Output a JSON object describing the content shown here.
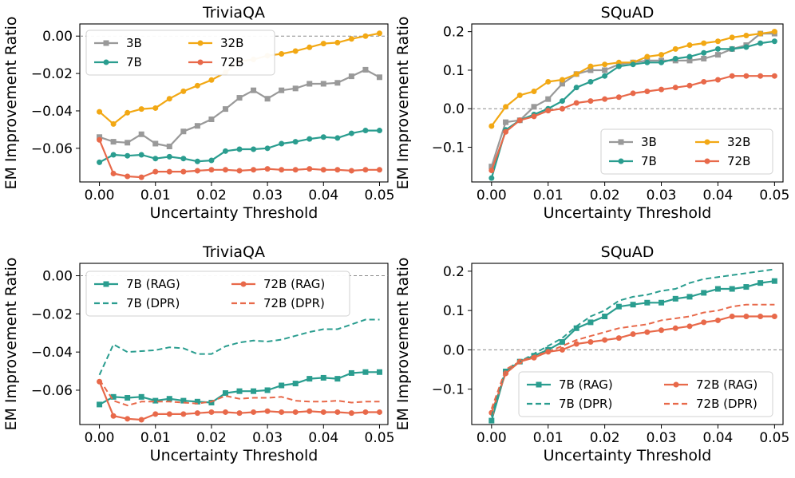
{
  "chart_data": [
    {
      "type": "line",
      "title": "TriviaQA",
      "xlabel": "Uncertainty Threshold",
      "ylabel": "EM Improvement Ratio",
      "xlim": [
        -0.0035,
        0.0515
      ],
      "ylim": [
        -0.078,
        0.0065
      ],
      "xticks": [
        0.0,
        0.01,
        0.02,
        0.03,
        0.04,
        0.05
      ],
      "xtick_labels": [
        "0.00",
        "0.01",
        "0.02",
        "0.03",
        "0.04",
        "0.05"
      ],
      "yticks": [
        0.0,
        -0.02,
        -0.04,
        -0.06
      ],
      "ytick_labels": [
        "0.00",
        "−0.02",
        "−0.04",
        "−0.06"
      ],
      "reference_line": 0,
      "legend_position": "upper-left",
      "x": [
        0.0,
        0.0025,
        0.005,
        0.0075,
        0.01,
        0.0125,
        0.015,
        0.0175,
        0.02,
        0.0225,
        0.025,
        0.0275,
        0.03,
        0.0325,
        0.035,
        0.0375,
        0.04,
        0.0425,
        0.045,
        0.0475,
        0.05
      ],
      "series": [
        {
          "name": "3B",
          "color": "#999999",
          "marker": "square",
          "style": "solid",
          "values": [
            -0.054,
            -0.0565,
            -0.057,
            -0.0525,
            -0.0575,
            -0.059,
            -0.051,
            -0.048,
            -0.0445,
            -0.039,
            -0.033,
            -0.029,
            -0.0335,
            -0.029,
            -0.028,
            -0.0255,
            -0.0255,
            -0.025,
            -0.0215,
            -0.018,
            -0.022
          ]
        },
        {
          "name": "32B",
          "color": "#f2a814",
          "marker": "circle",
          "style": "solid",
          "values": [
            -0.0405,
            -0.047,
            -0.041,
            -0.039,
            -0.0385,
            -0.0335,
            -0.0295,
            -0.0265,
            -0.0235,
            -0.0195,
            -0.0135,
            -0.0125,
            -0.0105,
            -0.0095,
            -0.008,
            -0.006,
            -0.004,
            -0.0035,
            -0.0015,
            0.0,
            0.0015
          ]
        },
        {
          "name": "7B",
          "color": "#2a9d8f",
          "marker": "circle",
          "style": "solid",
          "values": [
            -0.0675,
            -0.0635,
            -0.064,
            -0.0635,
            -0.0655,
            -0.0645,
            -0.0655,
            -0.067,
            -0.0665,
            -0.0615,
            -0.0605,
            -0.0605,
            -0.06,
            -0.0575,
            -0.0565,
            -0.055,
            -0.054,
            -0.0545,
            -0.052,
            -0.0505,
            -0.0505
          ]
        },
        {
          "name": "72B",
          "color": "#e8694a",
          "marker": "circle",
          "style": "solid",
          "values": [
            -0.0555,
            -0.0735,
            -0.075,
            -0.0755,
            -0.0725,
            -0.0725,
            -0.0725,
            -0.072,
            -0.0715,
            -0.0715,
            -0.072,
            -0.0715,
            -0.071,
            -0.0715,
            -0.0715,
            -0.071,
            -0.0715,
            -0.0715,
            -0.072,
            -0.0715,
            -0.0715
          ]
        }
      ]
    },
    {
      "type": "line",
      "title": "SQuAD",
      "xlabel": "Uncertainty Threshold",
      "ylabel": "EM Improvement Ratio",
      "xlim": [
        -0.0035,
        0.0515
      ],
      "ylim": [
        -0.19,
        0.22
      ],
      "xticks": [
        0.0,
        0.01,
        0.02,
        0.03,
        0.04,
        0.05
      ],
      "xtick_labels": [
        "0.00",
        "0.01",
        "0.02",
        "0.03",
        "0.04",
        "0.05"
      ],
      "yticks": [
        0.2,
        0.1,
        0.0,
        -0.1
      ],
      "ytick_labels": [
        "0.2",
        "0.1",
        "0.0",
        "−0.1"
      ],
      "reference_line": 0,
      "legend_position": "lower-right",
      "x": [
        0.0,
        0.0025,
        0.005,
        0.0075,
        0.01,
        0.0125,
        0.015,
        0.0175,
        0.02,
        0.0225,
        0.025,
        0.0275,
        0.03,
        0.0325,
        0.035,
        0.0375,
        0.04,
        0.0425,
        0.045,
        0.0475,
        0.05
      ],
      "series": [
        {
          "name": "3B",
          "color": "#999999",
          "marker": "square",
          "style": "solid",
          "values": [
            -0.15,
            -0.035,
            -0.03,
            0.005,
            0.025,
            0.065,
            0.09,
            0.1,
            0.1,
            0.115,
            0.12,
            0.125,
            0.125,
            0.125,
            0.125,
            0.13,
            0.14,
            0.155,
            0.165,
            0.195,
            0.195
          ]
        },
        {
          "name": "32B",
          "color": "#f2a814",
          "marker": "circle",
          "style": "solid",
          "values": [
            -0.045,
            0.005,
            0.035,
            0.045,
            0.07,
            0.075,
            0.09,
            0.11,
            0.115,
            0.12,
            0.12,
            0.135,
            0.14,
            0.155,
            0.165,
            0.17,
            0.175,
            0.185,
            0.19,
            0.195,
            0.2
          ]
        },
        {
          "name": "7B",
          "color": "#2a9d8f",
          "marker": "circle",
          "style": "solid",
          "values": [
            -0.18,
            -0.055,
            -0.03,
            -0.015,
            0.0,
            0.02,
            0.055,
            0.07,
            0.085,
            0.11,
            0.115,
            0.12,
            0.12,
            0.13,
            0.135,
            0.145,
            0.155,
            0.155,
            0.16,
            0.17,
            0.175
          ]
        },
        {
          "name": "72B",
          "color": "#e8694a",
          "marker": "circle",
          "style": "solid",
          "values": [
            -0.16,
            -0.06,
            -0.03,
            -0.02,
            -0.005,
            0.0,
            0.015,
            0.02,
            0.025,
            0.03,
            0.04,
            0.045,
            0.05,
            0.055,
            0.06,
            0.07,
            0.075,
            0.085,
            0.085,
            0.085,
            0.085
          ]
        }
      ]
    },
    {
      "type": "line",
      "title": "TriviaQA",
      "xlabel": "Uncertainty Threshold",
      "ylabel": "EM Improvement Ratio",
      "xlim": [
        -0.0035,
        0.0515
      ],
      "ylim": [
        -0.078,
        0.0065
      ],
      "xticks": [
        0.0,
        0.01,
        0.02,
        0.03,
        0.04,
        0.05
      ],
      "xtick_labels": [
        "0.00",
        "0.01",
        "0.02",
        "0.03",
        "0.04",
        "0.05"
      ],
      "yticks": [
        0.0,
        -0.02,
        -0.04,
        -0.06
      ],
      "ytick_labels": [
        "0.00",
        "−0.02",
        "−0.04",
        "−0.06"
      ],
      "reference_line": 0,
      "legend_position": "upper-center",
      "x": [
        0.0,
        0.0025,
        0.005,
        0.0075,
        0.01,
        0.0125,
        0.015,
        0.0175,
        0.02,
        0.0225,
        0.025,
        0.0275,
        0.03,
        0.0325,
        0.035,
        0.0375,
        0.04,
        0.0425,
        0.045,
        0.0475,
        0.05
      ],
      "series": [
        {
          "name": "7B (RAG)",
          "color": "#2a9d8f",
          "marker": "square",
          "style": "solid",
          "values": [
            -0.0675,
            -0.0635,
            -0.064,
            -0.0635,
            -0.0655,
            -0.0645,
            -0.0655,
            -0.066,
            -0.0665,
            -0.0615,
            -0.0605,
            -0.0605,
            -0.06,
            -0.0575,
            -0.0565,
            -0.054,
            -0.0535,
            -0.054,
            -0.051,
            -0.0505,
            -0.0505
          ]
        },
        {
          "name": "72B (RAG)",
          "color": "#e8694a",
          "marker": "circle",
          "style": "solid",
          "values": [
            -0.0555,
            -0.0735,
            -0.075,
            -0.0755,
            -0.0725,
            -0.0725,
            -0.0725,
            -0.072,
            -0.0715,
            -0.0715,
            -0.072,
            -0.0715,
            -0.071,
            -0.0715,
            -0.0715,
            -0.071,
            -0.0715,
            -0.0715,
            -0.072,
            -0.0715,
            -0.0715
          ]
        },
        {
          "name": "7B (DPR)",
          "color": "#2a9d8f",
          "marker": "none",
          "style": "dashed",
          "values": [
            -0.052,
            -0.036,
            -0.04,
            -0.0395,
            -0.039,
            -0.0375,
            -0.038,
            -0.041,
            -0.041,
            -0.037,
            -0.035,
            -0.034,
            -0.0345,
            -0.0335,
            -0.0315,
            -0.0295,
            -0.028,
            -0.028,
            -0.0255,
            -0.023,
            -0.023
          ]
        },
        {
          "name": "72B (DPR)",
          "color": "#e8694a",
          "marker": "none",
          "style": "dashed",
          "values": [
            -0.0545,
            -0.0655,
            -0.068,
            -0.066,
            -0.066,
            -0.066,
            -0.0665,
            -0.067,
            -0.066,
            -0.063,
            -0.0645,
            -0.064,
            -0.064,
            -0.0635,
            -0.0655,
            -0.066,
            -0.066,
            -0.0655,
            -0.0665,
            -0.066,
            -0.066
          ]
        }
      ]
    },
    {
      "type": "line",
      "title": "SQuAD",
      "xlabel": "Uncertainty Threshold",
      "ylabel": "EM Improvement Ratio",
      "xlim": [
        -0.0035,
        0.0515
      ],
      "ylim": [
        -0.19,
        0.22
      ],
      "xticks": [
        0.0,
        0.01,
        0.02,
        0.03,
        0.04,
        0.05
      ],
      "xtick_labels": [
        "0.00",
        "0.01",
        "0.02",
        "0.03",
        "0.04",
        "0.05"
      ],
      "yticks": [
        0.2,
        0.1,
        0.0,
        -0.1
      ],
      "ytick_labels": [
        "0.2",
        "0.1",
        "0.0",
        "−0.1"
      ],
      "reference_line": 0,
      "legend_position": "lower-right",
      "x": [
        0.0,
        0.0025,
        0.005,
        0.0075,
        0.01,
        0.0125,
        0.015,
        0.0175,
        0.02,
        0.0225,
        0.025,
        0.0275,
        0.03,
        0.0325,
        0.035,
        0.0375,
        0.04,
        0.0425,
        0.045,
        0.0475,
        0.05
      ],
      "series": [
        {
          "name": "7B (RAG)",
          "color": "#2a9d8f",
          "marker": "square",
          "style": "solid",
          "values": [
            -0.18,
            -0.055,
            -0.03,
            -0.015,
            0.0,
            0.02,
            0.055,
            0.07,
            0.085,
            0.11,
            0.115,
            0.12,
            0.12,
            0.13,
            0.135,
            0.145,
            0.155,
            0.155,
            0.16,
            0.17,
            0.175
          ]
        },
        {
          "name": "72B (RAG)",
          "color": "#e8694a",
          "marker": "circle",
          "style": "solid",
          "values": [
            -0.16,
            -0.06,
            -0.03,
            -0.02,
            -0.005,
            0.0,
            0.015,
            0.02,
            0.025,
            0.03,
            0.04,
            0.045,
            0.05,
            0.055,
            0.06,
            0.07,
            0.075,
            0.085,
            0.085,
            0.085,
            0.085
          ]
        },
        {
          "name": "7B (DPR)",
          "color": "#2a9d8f",
          "marker": "none",
          "style": "dashed",
          "values": [
            -0.17,
            -0.05,
            -0.03,
            -0.01,
            0.01,
            0.03,
            0.06,
            0.085,
            0.1,
            0.125,
            0.135,
            0.14,
            0.15,
            0.155,
            0.17,
            0.18,
            0.185,
            0.19,
            0.195,
            0.2,
            0.205
          ]
        },
        {
          "name": "72B (DPR)",
          "color": "#e8694a",
          "marker": "none",
          "style": "dashed",
          "values": [
            -0.15,
            -0.05,
            -0.03,
            -0.015,
            -0.005,
            0.01,
            0.025,
            0.035,
            0.045,
            0.055,
            0.06,
            0.065,
            0.075,
            0.08,
            0.085,
            0.095,
            0.1,
            0.11,
            0.115,
            0.115,
            0.115
          ]
        }
      ]
    }
  ]
}
